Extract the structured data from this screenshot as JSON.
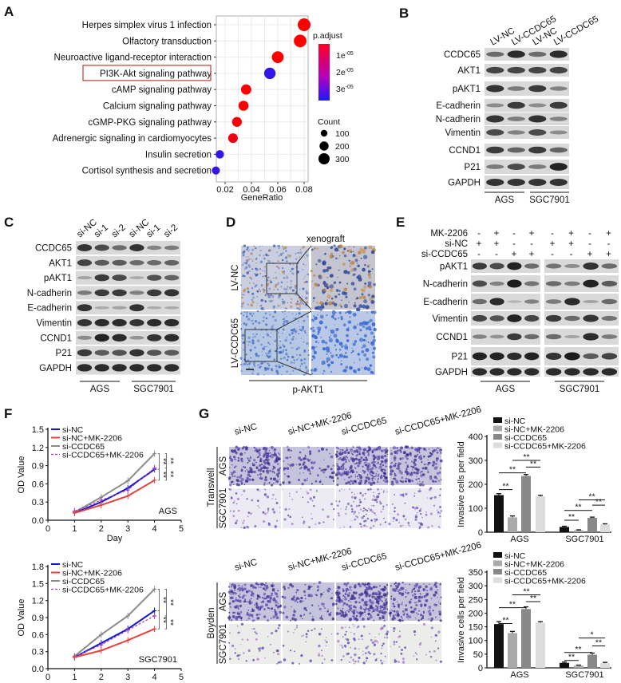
{
  "panels": {
    "A": {
      "label": "A"
    },
    "B": {
      "label": "B",
      "lanes": [
        "LV-NC",
        "LV-CCDC65",
        "LV-NC",
        "LV-CCDC65"
      ],
      "rows": [
        {
          "name": "CCDC65",
          "intensity": [
            0.5,
            0.9,
            0.5,
            0.9
          ]
        },
        {
          "name": "AKT1",
          "intensity": [
            0.75,
            0.75,
            0.75,
            0.75
          ]
        },
        {
          "name": "pAKT1",
          "intensity": [
            0.85,
            0.4,
            0.8,
            0.35
          ]
        },
        {
          "name": "E-cadherin",
          "intensity": [
            0.3,
            0.8,
            0.3,
            0.8
          ]
        },
        {
          "name": "N-cadherin",
          "intensity": [
            0.85,
            0.4,
            0.85,
            0.35
          ]
        },
        {
          "name": "Vimentin",
          "intensity": [
            0.7,
            0.35,
            0.7,
            0.3
          ]
        },
        {
          "name": "CCND1",
          "intensity": [
            0.8,
            0.55,
            0.8,
            0.55
          ]
        },
        {
          "name": "P21",
          "intensity": [
            0.4,
            0.7,
            0.4,
            0.95
          ]
        },
        {
          "name": "GAPDH",
          "intensity": [
            0.85,
            0.85,
            0.85,
            0.85
          ]
        }
      ],
      "groups": [
        "AGS",
        "SGC7901"
      ]
    },
    "C": {
      "label": "C",
      "lanes": [
        "si-NC",
        "si-1",
        "si-2",
        "si-NC",
        "si-1",
        "si-2"
      ],
      "rows": [
        {
          "name": "CCDC65",
          "intensity": [
            0.85,
            0.7,
            0.5,
            0.85,
            0.35,
            0.4
          ]
        },
        {
          "name": "AKT1",
          "intensity": [
            0.75,
            0.6,
            0.6,
            0.5,
            0.5,
            0.55
          ]
        },
        {
          "name": "pAKT1",
          "intensity": [
            0.15,
            0.8,
            0.7,
            0.1,
            0.65,
            0.55
          ]
        },
        {
          "name": "N-cadherin",
          "intensity": [
            0.4,
            0.8,
            0.8,
            0.35,
            0.8,
            0.85
          ]
        },
        {
          "name": "E-cadherin",
          "intensity": [
            0.85,
            0.1,
            0.15,
            0.85,
            0.1,
            0.1
          ]
        },
        {
          "name": "Vimentin",
          "intensity": [
            0.85,
            0.9,
            0.9,
            0.85,
            0.9,
            0.9
          ]
        },
        {
          "name": "CCND1",
          "intensity": [
            0.3,
            0.95,
            0.9,
            0.25,
            0.85,
            0.9
          ]
        },
        {
          "name": "P21",
          "intensity": [
            0.8,
            0.6,
            0.65,
            0.85,
            0.65,
            0.6
          ]
        },
        {
          "name": "GAPDH",
          "intensity": [
            0.9,
            0.9,
            0.9,
            0.9,
            0.9,
            0.9
          ]
        }
      ],
      "groups": [
        "AGS",
        "SGC7901"
      ]
    },
    "D": {
      "label": "D",
      "title": "xenograft",
      "rows": [
        "LV-NC",
        "LV-CCDC65"
      ],
      "stain": "p-AKT1"
    },
    "E": {
      "label": "E",
      "conditions": [
        {
          "name": "MK-2206",
          "signs": [
            "-",
            "+",
            "-",
            "+",
            "-",
            "+",
            "-",
            "+"
          ]
        },
        {
          "name": "si-NC",
          "signs": [
            "+",
            "+",
            "-",
            "-",
            "+",
            "+",
            "-",
            "-"
          ]
        },
        {
          "name": "si-CCDC65",
          "signs": [
            "-",
            "-",
            "+",
            "+",
            "-",
            "-",
            "+",
            "+"
          ]
        }
      ],
      "rows": [
        {
          "name": "pAKT1",
          "intensity": [
            0.8,
            0.7,
            0.95,
            0.5,
            0.45,
            0.3,
            0.85,
            0.5
          ]
        },
        {
          "name": "N-cadherin",
          "intensity": [
            0.7,
            0.35,
            1.0,
            0.45,
            0.5,
            0.4,
            0.95,
            0.6
          ]
        },
        {
          "name": "E-cadherin",
          "intensity": [
            0.5,
            0.9,
            0.05,
            0.35,
            0.4,
            0.9,
            0.15,
            0.5
          ]
        },
        {
          "name": "Vimentin",
          "intensity": [
            0.75,
            0.65,
            0.95,
            0.75,
            0.8,
            0.5,
            0.85,
            0.45
          ]
        },
        {
          "name": "CCND1",
          "intensity": [
            0.35,
            0.25,
            0.8,
            0.5,
            0.5,
            0.15,
            0.9,
            0.4
          ]
        },
        {
          "name": "P21",
          "intensity": [
            0.95,
            0.95,
            0.9,
            0.95,
            0.85,
            1.0,
            0.6,
            0.75
          ]
        },
        {
          "name": "GAPDH",
          "intensity": [
            0.9,
            0.9,
            0.9,
            0.9,
            0.9,
            0.9,
            0.9,
            0.9
          ]
        }
      ],
      "groups": [
        "AGS",
        "SGC7901"
      ]
    },
    "F": {
      "label": "F"
    },
    "G": {
      "label": "G",
      "columns": [
        "si-NC",
        "si-NC+MK-2206",
        "si-CCDC65",
        "si-CCDC65+MK-2206"
      ],
      "assays": [
        {
          "name": "Transwell",
          "rows": [
            "AGS",
            "SGC7901"
          ]
        },
        {
          "name": "Boyden",
          "rows": [
            "AGS",
            "SGC7901"
          ]
        }
      ]
    }
  },
  "colors": {
    "high_p": "#ff0000",
    "low_p": "#1a1aff",
    "si_nc": "#1515d0",
    "mk": "#e8423c",
    "ccdc65": "#8c8c8c",
    "combo": "#a040c0"
  },
  "chart_data": [
    {
      "type": "scatter",
      "title": "",
      "xlabel": "GeneRatio",
      "ylabel": "",
      "x_ticks": [
        "0.02",
        "0.04",
        "0.06",
        "0.08"
      ],
      "xlim": [
        0.011,
        0.083
      ],
      "categories": [
        "Herpes simplex virus 1 infection",
        "Olfactory transduction",
        "Neuroactive ligand-receptor interaction",
        "PI3K-Akt signaling pathway",
        "cAMP signaling pathway",
        "Calcium signaling pathway",
        "cGMP-PKG signaling pathway",
        "Adrenergic signaling in cardiomyocytes",
        "Insulin secretion",
        "Cortisol synthesis and secretion"
      ],
      "gene_ratio": [
        0.08,
        0.077,
        0.06,
        0.054,
        0.036,
        0.034,
        0.029,
        0.026,
        0.016,
        0.013
      ],
      "count": [
        300,
        290,
        230,
        210,
        140,
        130,
        120,
        110,
        60,
        50
      ],
      "p_adjust": [
        0.0,
        0.0,
        0.0,
        3.6e-05,
        0.0,
        0.0,
        1e-06,
        3e-06,
        3.6e-05,
        3.5e-05
      ],
      "highlighted": "PI3K-Akt signaling pathway",
      "color_legend": {
        "title": "p.adjust",
        "ticks": [
          {
            "base": "1e",
            "exp": "-05"
          },
          {
            "base": "2e",
            "exp": "-05"
          },
          {
            "base": "3e",
            "exp": "-05"
          }
        ],
        "range": [
          0,
          4e-05
        ]
      },
      "size_legend": {
        "title": "Count",
        "values": [
          "100",
          "200",
          "300"
        ]
      },
      "grid": true
    },
    {
      "type": "line",
      "title": "AGS",
      "xlabel": "Day",
      "ylabel": "OD Value",
      "x": [
        1,
        2,
        3,
        4
      ],
      "x_ticks": [
        "0",
        "1",
        "2",
        "3",
        "4",
        "5"
      ],
      "y_ticks": [
        "0.0",
        "0.3",
        "0.6",
        "0.9",
        "1.2",
        "1.5"
      ],
      "xlim": [
        0,
        5
      ],
      "ylim": [
        0,
        1.5
      ],
      "series": [
        {
          "name": "si-NC",
          "values": [
            0.12,
            0.3,
            0.53,
            0.84
          ],
          "style": "solid"
        },
        {
          "name": "si-NC+MK-2206",
          "values": [
            0.12,
            0.25,
            0.4,
            0.66
          ],
          "style": "solid"
        },
        {
          "name": "si-CCDC65",
          "values": [
            0.13,
            0.38,
            0.65,
            1.1
          ],
          "style": "solid"
        },
        {
          "name": "si-CCDC65+MK-2206",
          "values": [
            0.15,
            0.33,
            0.5,
            0.86
          ],
          "style": "dashed"
        }
      ],
      "significance": [
        {
          "a": 2,
          "b": 0,
          "text": "**"
        },
        {
          "a": 2,
          "b": 3,
          "text": "**"
        },
        {
          "a": 0,
          "b": 1,
          "text": "**"
        },
        {
          "a": 3,
          "b": 1,
          "text": "**"
        }
      ],
      "legend": "top-left"
    },
    {
      "type": "line",
      "title": "SGC7901",
      "xlabel": "Day",
      "ylabel": "OD Value",
      "x": [
        1,
        2,
        3,
        4
      ],
      "x_ticks": [
        "0",
        "1",
        "2",
        "3",
        "4",
        "5"
      ],
      "y_ticks": [
        "0.0",
        "0.3",
        "0.6",
        "0.9",
        "1.2",
        "1.5",
        "1.8"
      ],
      "xlim": [
        0,
        5
      ],
      "ylim": [
        0,
        1.8
      ],
      "series": [
        {
          "name": "si-NC",
          "values": [
            0.2,
            0.45,
            0.7,
            1.02
          ],
          "style": "solid"
        },
        {
          "name": "si-NC+MK-2206",
          "values": [
            0.2,
            0.32,
            0.5,
            0.7
          ],
          "style": "solid"
        },
        {
          "name": "si-CCDC65",
          "values": [
            0.22,
            0.6,
            0.93,
            1.4
          ],
          "style": "solid"
        },
        {
          "name": "si-CCDC65+MK-2206",
          "values": [
            0.21,
            0.42,
            0.68,
            0.93
          ],
          "style": "dashed"
        }
      ],
      "significance": [
        {
          "a": 2,
          "b": 0,
          "text": "**"
        },
        {
          "a": 2,
          "b": 3,
          "text": "**"
        },
        {
          "a": 0,
          "b": 1,
          "text": "**"
        },
        {
          "a": 3,
          "b": 1,
          "text": "**"
        }
      ],
      "legend": "top-left"
    },
    {
      "type": "bar",
      "title": "Transwell",
      "xlabel": "",
      "ylabel": "Invasive cells per field",
      "categories": [
        "AGS",
        "SGC7901"
      ],
      "y_ticks": [
        "0",
        "100",
        "200",
        "300",
        "400"
      ],
      "ylim": [
        0,
        400
      ],
      "series": [
        {
          "name": "si-NC",
          "values": [
            155,
            22
          ],
          "errors": [
            6,
            3
          ]
        },
        {
          "name": "si-NC+MK-2206",
          "values": [
            62,
            8
          ],
          "errors": [
            6,
            2
          ]
        },
        {
          "name": "si-CCDC65",
          "values": [
            235,
            60
          ],
          "errors": [
            6,
            3
          ]
        },
        {
          "name": "si-CCDC65+MK-2206",
          "values": [
            150,
            32
          ],
          "errors": [
            4,
            3
          ]
        }
      ],
      "significance": [
        {
          "group": 0,
          "a": 0,
          "b": 1,
          "level": 178,
          "text": "**"
        },
        {
          "group": 0,
          "a": 0,
          "b": 2,
          "level": 248,
          "text": "**"
        },
        {
          "group": 0,
          "a": 2,
          "b": 3,
          "level": 272,
          "text": "**"
        },
        {
          "group": 0,
          "a": 1,
          "b": 3,
          "level": 300,
          "text": "**"
        },
        {
          "group": 1,
          "a": 0,
          "b": 1,
          "level": 50,
          "text": "**"
        },
        {
          "group": 1,
          "a": 0,
          "b": 2,
          "level": 91,
          "text": "**"
        },
        {
          "group": 1,
          "a": 2,
          "b": 3,
          "level": 113,
          "text": "**"
        },
        {
          "group": 1,
          "a": 1,
          "b": 3,
          "level": 135,
          "text": "**"
        }
      ],
      "legend": "top"
    },
    {
      "type": "bar",
      "title": "Boyden",
      "xlabel": "",
      "ylabel": "Invasive cells per field",
      "categories": [
        "AGS",
        "SGC7901"
      ],
      "y_ticks": [
        "0",
        "50",
        "100",
        "150",
        "200",
        "250",
        "300",
        "350"
      ],
      "ylim": [
        0,
        350
      ],
      "series": [
        {
          "name": "si-NC",
          "values": [
            160,
            18
          ],
          "errors": [
            9,
            3
          ]
        },
        {
          "name": "si-NC+MK-2206",
          "values": [
            127,
            8
          ],
          "errors": [
            6,
            2
          ]
        },
        {
          "name": "si-CCDC65",
          "values": [
            215,
            48
          ],
          "errors": [
            8,
            6
          ]
        },
        {
          "name": "si-CCDC65+MK-2206",
          "values": [
            165,
            17
          ],
          "errors": [
            4,
            3
          ]
        }
      ],
      "significance": [
        {
          "group": 0,
          "a": 0,
          "b": 1,
          "level": 162,
          "text": "**"
        },
        {
          "group": 0,
          "a": 0,
          "b": 2,
          "level": 220,
          "text": "**"
        },
        {
          "group": 0,
          "a": 2,
          "b": 3,
          "level": 242,
          "text": "**"
        },
        {
          "group": 0,
          "a": 1,
          "b": 3,
          "level": 267,
          "text": "**"
        },
        {
          "group": 1,
          "a": 0,
          "b": 1,
          "level": 27,
          "text": "**"
        },
        {
          "group": 1,
          "a": 0,
          "b": 2,
          "level": 56,
          "text": "**"
        },
        {
          "group": 1,
          "a": 2,
          "b": 3,
          "level": 80,
          "text": "**"
        },
        {
          "group": 1,
          "a": 1,
          "b": 3,
          "level": 109,
          "text": "*"
        }
      ],
      "legend": "top"
    }
  ]
}
